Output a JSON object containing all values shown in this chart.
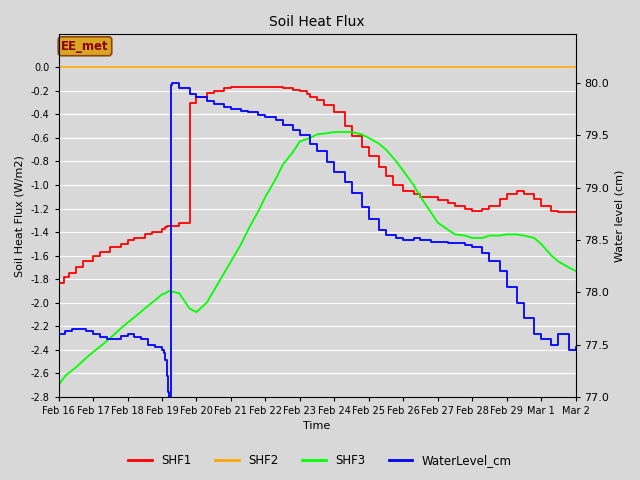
{
  "title": "Soil Heat Flux",
  "xlabel": "Time",
  "ylabel_left": "Soil Heat Flux (W/m2)",
  "ylabel_right": "Water level (cm)",
  "ylim_left": [
    -2.8,
    0.28
  ],
  "ylim_right": [
    77.0,
    80.467
  ],
  "bg_color": "#d8d8d8",
  "plot_bg_color": "#d8d8d8",
  "grid_color": "white",
  "annotation_text": "EE_met",
  "annotation_color": "#8B0000",
  "annotation_bg": "#DAA520",
  "shf2_color": "#FFA500",
  "shf1_color": "red",
  "shf3_color": "lime",
  "water_color": "blue",
  "x_tick_labels": [
    "Feb 16",
    "Feb 17",
    "Feb 18",
    "Feb 19",
    "Feb 20",
    "Feb 21",
    "Feb 22",
    "Feb 23",
    "Feb 24",
    "Feb 25",
    "Feb 26",
    "Feb 27",
    "Feb 28",
    "Feb 29",
    "Mar 1",
    "Mar 2"
  ],
  "yticks_left": [
    0.0,
    -0.2,
    -0.4,
    -0.6,
    -0.8,
    -1.0,
    -1.2,
    -1.4,
    -1.6,
    -1.8,
    -2.0,
    -2.2,
    -2.4,
    -2.6,
    -2.8
  ],
  "yticks_right": [
    77.0,
    77.5,
    78.0,
    78.5,
    79.0,
    79.5,
    80.0
  ],
  "shf1_x": [
    0,
    0.15,
    0.3,
    0.5,
    0.7,
    1.0,
    1.2,
    1.5,
    1.8,
    2.0,
    2.2,
    2.5,
    2.7,
    3.0,
    3.1,
    3.15,
    3.2,
    3.5,
    3.8,
    4.0,
    4.3,
    4.5,
    4.8,
    5.0,
    5.3,
    5.5,
    5.8,
    6.0,
    6.3,
    6.5,
    6.8,
    7.0,
    7.2,
    7.3,
    7.5,
    7.7,
    8.0,
    8.3,
    8.5,
    8.8,
    9.0,
    9.3,
    9.5,
    9.7,
    10.0,
    10.3,
    10.5,
    10.8,
    11.0,
    11.3,
    11.5,
    11.8,
    12.0,
    12.3,
    12.5,
    12.8,
    13.0,
    13.3,
    13.5,
    13.8,
    14.0,
    14.3,
    14.5,
    14.8,
    15.0
  ],
  "shf1_y": [
    -1.83,
    -1.78,
    -1.75,
    -1.7,
    -1.65,
    -1.6,
    -1.57,
    -1.53,
    -1.5,
    -1.47,
    -1.45,
    -1.42,
    -1.4,
    -1.37,
    -1.36,
    -1.35,
    -1.35,
    -1.32,
    -0.3,
    -0.25,
    -0.22,
    -0.2,
    -0.18,
    -0.17,
    -0.17,
    -0.17,
    -0.17,
    -0.17,
    -0.17,
    -0.18,
    -0.19,
    -0.2,
    -0.23,
    -0.25,
    -0.28,
    -0.32,
    -0.38,
    -0.5,
    -0.58,
    -0.68,
    -0.75,
    -0.85,
    -0.92,
    -1.0,
    -1.05,
    -1.08,
    -1.1,
    -1.1,
    -1.13,
    -1.15,
    -1.18,
    -1.2,
    -1.22,
    -1.2,
    -1.18,
    -1.12,
    -1.08,
    -1.05,
    -1.08,
    -1.12,
    -1.18,
    -1.22,
    -1.23,
    -1.23,
    -1.23
  ],
  "shf3_x": [
    0,
    0.2,
    0.5,
    0.8,
    1.0,
    1.3,
    1.5,
    1.8,
    2.0,
    2.3,
    2.5,
    2.8,
    3.0,
    3.1,
    3.15,
    3.2,
    3.5,
    3.8,
    4.0,
    4.3,
    4.5,
    4.8,
    5.0,
    5.3,
    5.5,
    5.8,
    6.0,
    6.3,
    6.5,
    6.8,
    7.0,
    7.3,
    7.5,
    7.8,
    8.0,
    8.3,
    8.5,
    8.8,
    9.0,
    9.3,
    9.5,
    9.8,
    10.0,
    10.3,
    10.5,
    10.8,
    11.0,
    11.3,
    11.5,
    11.8,
    12.0,
    12.3,
    12.5,
    12.8,
    13.0,
    13.3,
    13.5,
    13.8,
    14.0,
    14.3,
    14.5,
    14.8,
    15.0
  ],
  "shf3_y": [
    -2.7,
    -2.62,
    -2.55,
    -2.47,
    -2.42,
    -2.35,
    -2.3,
    -2.22,
    -2.17,
    -2.1,
    -2.05,
    -1.98,
    -1.93,
    -1.92,
    -1.91,
    -1.9,
    -1.92,
    -2.05,
    -2.08,
    -2.0,
    -1.9,
    -1.75,
    -1.65,
    -1.5,
    -1.38,
    -1.22,
    -1.1,
    -0.95,
    -0.83,
    -0.72,
    -0.63,
    -0.6,
    -0.57,
    -0.56,
    -0.55,
    -0.55,
    -0.55,
    -0.57,
    -0.6,
    -0.65,
    -0.7,
    -0.8,
    -0.88,
    -1.0,
    -1.1,
    -1.23,
    -1.32,
    -1.38,
    -1.42,
    -1.43,
    -1.45,
    -1.45,
    -1.43,
    -1.43,
    -1.42,
    -1.42,
    -1.43,
    -1.45,
    -1.5,
    -1.6,
    -1.65,
    -1.7,
    -1.73
  ],
  "water_x": [
    0,
    0.2,
    0.4,
    0.6,
    0.8,
    1.0,
    1.2,
    1.4,
    1.6,
    1.8,
    2.0,
    2.2,
    2.4,
    2.6,
    2.8,
    3.0,
    3.05,
    3.1,
    3.15,
    3.18,
    3.2,
    3.25,
    3.3,
    3.5,
    3.8,
    4.0,
    4.3,
    4.5,
    4.8,
    5.0,
    5.3,
    5.5,
    5.8,
    6.0,
    6.3,
    6.5,
    6.8,
    7.0,
    7.3,
    7.5,
    7.8,
    8.0,
    8.3,
    8.5,
    8.8,
    9.0,
    9.3,
    9.5,
    9.8,
    10.0,
    10.3,
    10.5,
    10.8,
    11.0,
    11.3,
    11.5,
    11.8,
    12.0,
    12.3,
    12.5,
    12.8,
    13.0,
    13.3,
    13.5,
    13.8,
    14.0,
    14.3,
    14.5,
    14.8,
    15.0
  ],
  "water_y": [
    77.6,
    77.63,
    77.65,
    77.65,
    77.63,
    77.6,
    77.57,
    77.55,
    77.55,
    77.58,
    77.6,
    77.57,
    77.55,
    77.5,
    77.48,
    77.45,
    77.42,
    77.35,
    77.2,
    77.05,
    77.0,
    79.98,
    80.0,
    79.95,
    79.9,
    79.87,
    79.83,
    79.8,
    79.77,
    79.75,
    79.73,
    79.72,
    79.7,
    79.68,
    79.65,
    79.6,
    79.55,
    79.5,
    79.42,
    79.35,
    79.25,
    79.15,
    79.05,
    78.95,
    78.82,
    78.7,
    78.6,
    78.55,
    78.52,
    78.5,
    78.52,
    78.5,
    78.48,
    78.48,
    78.47,
    78.47,
    78.45,
    78.43,
    78.38,
    78.3,
    78.2,
    78.05,
    77.9,
    77.75,
    77.6,
    77.55,
    77.5,
    77.6,
    77.45,
    77.48
  ]
}
